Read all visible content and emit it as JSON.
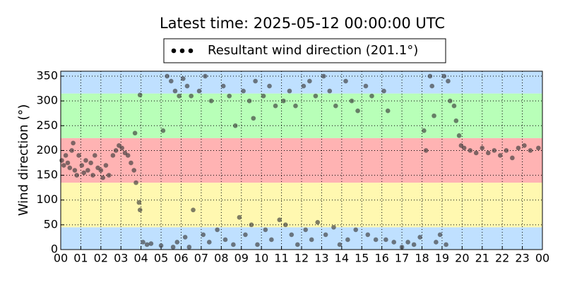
{
  "chart_data": {
    "type": "scatter",
    "title": "Latest time: 2025-05-12 00:00:00 UTC",
    "ylabel": "Wind direction (°)",
    "xlim": [
      0,
      24
    ],
    "ylim": [
      0,
      360
    ],
    "xticks": [
      {
        "value": 0,
        "label": "00"
      },
      {
        "value": 1,
        "label": "01"
      },
      {
        "value": 2,
        "label": "02"
      },
      {
        "value": 3,
        "label": "03"
      },
      {
        "value": 4,
        "label": "04"
      },
      {
        "value": 5,
        "label": "05"
      },
      {
        "value": 6,
        "label": "06"
      },
      {
        "value": 7,
        "label": "07"
      },
      {
        "value": 8,
        "label": "08"
      },
      {
        "value": 9,
        "label": "09"
      },
      {
        "value": 10,
        "label": "10"
      },
      {
        "value": 11,
        "label": "11"
      },
      {
        "value": 12,
        "label": "12"
      },
      {
        "value": 13,
        "label": "13"
      },
      {
        "value": 14,
        "label": "14"
      },
      {
        "value": 15,
        "label": "15"
      },
      {
        "value": 16,
        "label": "16"
      },
      {
        "value": 17,
        "label": "17"
      },
      {
        "value": 18,
        "label": "18"
      },
      {
        "value": 19,
        "label": "19"
      },
      {
        "value": 20,
        "label": "20"
      },
      {
        "value": 21,
        "label": "21"
      },
      {
        "value": 22,
        "label": "22"
      },
      {
        "value": 23,
        "label": "23"
      },
      {
        "value": 24,
        "label": "00"
      }
    ],
    "yticks": [
      0,
      50,
      100,
      150,
      200,
      250,
      300,
      350
    ],
    "grid": true,
    "legend": "upper center",
    "bands": [
      {
        "from": 0,
        "to": 45,
        "color": "#bfe0ff"
      },
      {
        "from": 45,
        "to": 135,
        "color": "#fff8b0"
      },
      {
        "from": 135,
        "to": 225,
        "color": "#ffb3b3"
      },
      {
        "from": 225,
        "to": 315,
        "color": "#b8ffb8"
      },
      {
        "from": 315,
        "to": 360,
        "color": "#bfe0ff"
      }
    ],
    "series": [
      {
        "name": "Resultant wind direction (201.1°)",
        "color": "#3a3a3a",
        "alpha": 0.65,
        "x": [
          0.05,
          0.15,
          0.25,
          0.35,
          0.45,
          0.55,
          0.62,
          0.7,
          0.8,
          0.9,
          1.05,
          1.15,
          1.25,
          1.35,
          1.5,
          1.6,
          1.7,
          1.85,
          2.0,
          2.1,
          2.25,
          2.4,
          2.6,
          2.75,
          2.9,
          3.05,
          3.2,
          3.35,
          3.5,
          3.65,
          3.75,
          3.9,
          3.95,
          3.7,
          4.1,
          4.3,
          4.5,
          5.0,
          3.95,
          5.1,
          5.3,
          5.5,
          5.7,
          5.9,
          5.6,
          5.8,
          6.1,
          6.3,
          6.5,
          6.2,
          6.4,
          6.6,
          6.9,
          7.2,
          7.5,
          7.1,
          7.4,
          7.8,
          8.1,
          8.4,
          8.7,
          8.2,
          8.6,
          8.9,
          9.1,
          9.4,
          9.7,
          9.2,
          9.5,
          9.8,
          9.6,
          10.1,
          10.4,
          10.7,
          10.2,
          10.5,
          10.9,
          11.1,
          11.4,
          11.7,
          11.2,
          11.5,
          11.8,
          12.1,
          12.4,
          12.7,
          12.2,
          12.5,
          12.8,
          13.1,
          13.4,
          13.7,
          13.2,
          13.6,
          13.9,
          14.2,
          14.5,
          14.8,
          14.3,
          14.7,
          15.2,
          15.5,
          15.3,
          15.7,
          16.1,
          16.3,
          16.2,
          16.6,
          17.0,
          17.3,
          17.6,
          17.9,
          18.1,
          18.2,
          18.4,
          18.5,
          18.6,
          18.7,
          18.9,
          19.1,
          19.3,
          19.4,
          19.2,
          19.6,
          19.7,
          19.85,
          19.95,
          20.1,
          20.4,
          20.7,
          21.0,
          21.3,
          21.6,
          21.9,
          22.2,
          22.5,
          22.8,
          23.1,
          23.4,
          23.8
        ],
        "values": [
          180,
          170,
          190,
          175,
          165,
          200,
          215,
          160,
          150,
          190,
          170,
          155,
          180,
          160,
          175,
          150,
          190,
          165,
          160,
          145,
          170,
          150,
          190,
          200,
          210,
          205,
          195,
          190,
          175,
          160,
          135,
          95,
          80,
          235,
          15,
          10,
          12,
          8,
          312,
          240,
          350,
          340,
          320,
          310,
          5,
          15,
          345,
          330,
          310,
          25,
          5,
          80,
          320,
          350,
          300,
          30,
          15,
          40,
          330,
          310,
          250,
          20,
          10,
          65,
          320,
          300,
          340,
          30,
          50,
          10,
          265,
          310,
          330,
          290,
          40,
          20,
          60,
          300,
          320,
          290,
          50,
          30,
          10,
          330,
          340,
          310,
          40,
          20,
          55,
          350,
          320,
          290,
          30,
          45,
          10,
          340,
          300,
          280,
          20,
          40,
          330,
          310,
          30,
          20,
          320,
          280,
          20,
          15,
          5,
          15,
          10,
          25,
          240,
          200,
          350,
          330,
          270,
          15,
          30,
          350,
          340,
          300,
          10,
          290,
          260,
          230,
          210,
          205,
          200,
          195,
          205,
          195,
          200,
          190,
          200,
          185,
          205,
          210,
          200,
          205
        ]
      }
    ]
  }
}
